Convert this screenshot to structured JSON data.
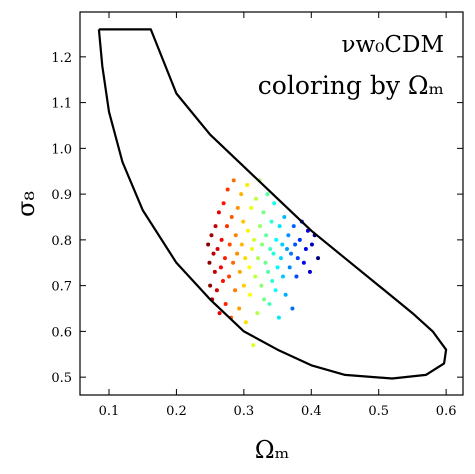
{
  "chart_data": {
    "type": "scatter",
    "title": "νw₀CDM",
    "subtitle": "coloring by Ωₘ",
    "x_label": "Ωₘ",
    "y_label": "σ₈",
    "colormap": "jet_r",
    "xlim": [
      0.057,
      0.625
    ],
    "ylim": [
      0.461,
      1.298
    ],
    "xticks": [
      0.1,
      0.2,
      0.3,
      0.4,
      0.5,
      0.6
    ],
    "yticks": [
      0.5,
      0.6,
      0.7,
      0.8,
      0.9,
      {
        "value": 1,
        "label": "1.0"
      },
      1.1,
      1.2
    ],
    "contour": {
      "color": "#000000",
      "x": [
        0.085,
        0.162,
        0.2,
        0.25,
        0.3,
        0.35,
        0.4,
        0.45,
        0.5,
        0.55,
        0.58,
        0.6,
        0.597,
        0.57,
        0.52,
        0.45,
        0.4,
        0.35,
        0.3,
        0.25,
        0.2,
        0.15,
        0.12,
        0.1,
        0.09,
        0.085
      ],
      "y": [
        1.26,
        1.26,
        1.12,
        1.03,
        0.96,
        0.89,
        0.82,
        0.76,
        0.7,
        0.64,
        0.6,
        0.56,
        0.53,
        0.505,
        0.497,
        0.505,
        0.526,
        0.56,
        0.6,
        0.67,
        0.75,
        0.865,
        0.97,
        1.08,
        1.18,
        1.26
      ]
    },
    "points": {
      "x": [
        0.247,
        0.249,
        0.25,
        0.252,
        0.253,
        0.255,
        0.257,
        0.258,
        0.26,
        0.261,
        0.263,
        0.264,
        0.266,
        0.267,
        0.269,
        0.27,
        0.272,
        0.273,
        0.275,
        0.276,
        0.278,
        0.279,
        0.281,
        0.282,
        0.284,
        0.285,
        0.287,
        0.288,
        0.29,
        0.291,
        0.293,
        0.294,
        0.296,
        0.297,
        0.299,
        0.3,
        0.302,
        0.303,
        0.305,
        0.306,
        0.308,
        0.309,
        0.311,
        0.312,
        0.314,
        0.315,
        0.317,
        0.318,
        0.32,
        0.321,
        0.323,
        0.324,
        0.326,
        0.327,
        0.329,
        0.33,
        0.332,
        0.333,
        0.335,
        0.336,
        0.338,
        0.339,
        0.341,
        0.342,
        0.344,
        0.345,
        0.347,
        0.348,
        0.35,
        0.352,
        0.353,
        0.355,
        0.357,
        0.358,
        0.36,
        0.362,
        0.364,
        0.366,
        0.368,
        0.37,
        0.372,
        0.374,
        0.376,
        0.378,
        0.38,
        0.383,
        0.386,
        0.389,
        0.392,
        0.395,
        0.398,
        0.401,
        0.405,
        0.41
      ],
      "y": [
        0.79,
        0.75,
        0.7,
        0.81,
        0.67,
        0.77,
        0.73,
        0.83,
        0.69,
        0.78,
        0.86,
        0.64,
        0.74,
        0.8,
        0.71,
        0.88,
        0.76,
        0.66,
        0.83,
        0.91,
        0.72,
        0.79,
        0.63,
        0.85,
        0.75,
        0.93,
        0.69,
        0.81,
        0.77,
        0.87,
        0.65,
        0.73,
        0.9,
        0.79,
        0.84,
        0.7,
        0.76,
        0.62,
        0.92,
        0.82,
        0.74,
        0.68,
        0.87,
        0.78,
        0.57,
        0.8,
        0.72,
        0.89,
        0.64,
        0.76,
        0.93,
        0.83,
        0.7,
        0.79,
        0.86,
        0.67,
        0.75,
        0.81,
        0.9,
        0.73,
        0.66,
        0.78,
        0.84,
        0.71,
        0.77,
        0.88,
        0.69,
        0.8,
        0.74,
        0.63,
        0.83,
        0.76,
        0.79,
        0.72,
        0.85,
        0.68,
        0.78,
        0.81,
        0.74,
        0.77,
        0.65,
        0.83,
        0.79,
        0.72,
        0.76,
        0.8,
        0.84,
        0.75,
        0.78,
        0.82,
        0.73,
        0.79,
        0.81,
        0.76
      ]
    }
  }
}
